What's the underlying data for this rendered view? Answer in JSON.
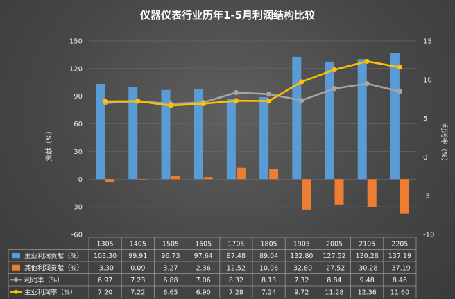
{
  "chart_data": {
    "type": "bar",
    "title": "仪器仪表行业历年1-5月利润结构比较",
    "categories": [
      "1305",
      "1405",
      "1505",
      "1605",
      "1705",
      "1805",
      "1905",
      "2005",
      "2105",
      "2205"
    ],
    "left_axis": {
      "label": "贡献（%）",
      "ylim": [
        -60,
        150
      ],
      "ticks": [
        "150",
        "120",
        "90",
        "60",
        "30",
        "0",
        "-30",
        "-60"
      ]
    },
    "right_axis": {
      "label": "利润率（%）",
      "ylim": [
        -10,
        15
      ],
      "ticks": [
        "15",
        "10",
        "5",
        "0",
        "-5",
        "-10"
      ]
    },
    "series": [
      {
        "name": "主业利润贡献（%）",
        "kind": "bar",
        "axis": "left",
        "color": "#5b9bd5",
        "values": [
          103.3,
          99.91,
          96.73,
          97.64,
          87.48,
          89.04,
          132.8,
          127.52,
          130.28,
          137.19
        ],
        "labels": [
          "103.30",
          "99.91",
          "96.73",
          "97.64",
          "87.48",
          "89.04",
          "132.80",
          "127.52",
          "130.28",
          "137.19"
        ]
      },
      {
        "name": "其他利润贡献（%）",
        "kind": "bar",
        "axis": "left",
        "color": "#ed7d31",
        "values": [
          -3.3,
          0.09,
          3.27,
          2.36,
          12.52,
          10.96,
          -32.8,
          -27.52,
          -30.28,
          -37.19
        ],
        "labels": [
          "-3.30",
          "0.09",
          "3.27",
          "2.36",
          "12.52",
          "10.96",
          "-32.80",
          "-27.52",
          "-30.28",
          "-37.19"
        ]
      },
      {
        "name": "利润率（%）",
        "kind": "line",
        "axis": "right",
        "color": "#a5a5a5",
        "values": [
          6.97,
          7.23,
          6.88,
          7.06,
          8.32,
          8.13,
          7.32,
          8.84,
          9.48,
          8.46
        ],
        "labels": [
          "6.97",
          "7.23",
          "6.88",
          "7.06",
          "8.32",
          "8.13",
          "7.32",
          "8.84",
          "9.48",
          "8.46"
        ]
      },
      {
        "name": "主业利润率（%）",
        "kind": "line",
        "axis": "right",
        "color": "#ffc000",
        "values": [
          7.2,
          7.22,
          6.65,
          6.9,
          7.28,
          7.24,
          9.72,
          11.28,
          12.36,
          11.6
        ],
        "labels": [
          "7.20",
          "7.22",
          "6.65",
          "6.90",
          "7.28",
          "7.24",
          "9.72",
          "11.28",
          "12.36",
          "11.60"
        ]
      }
    ],
    "grid": true,
    "legend": "data-table-below"
  }
}
